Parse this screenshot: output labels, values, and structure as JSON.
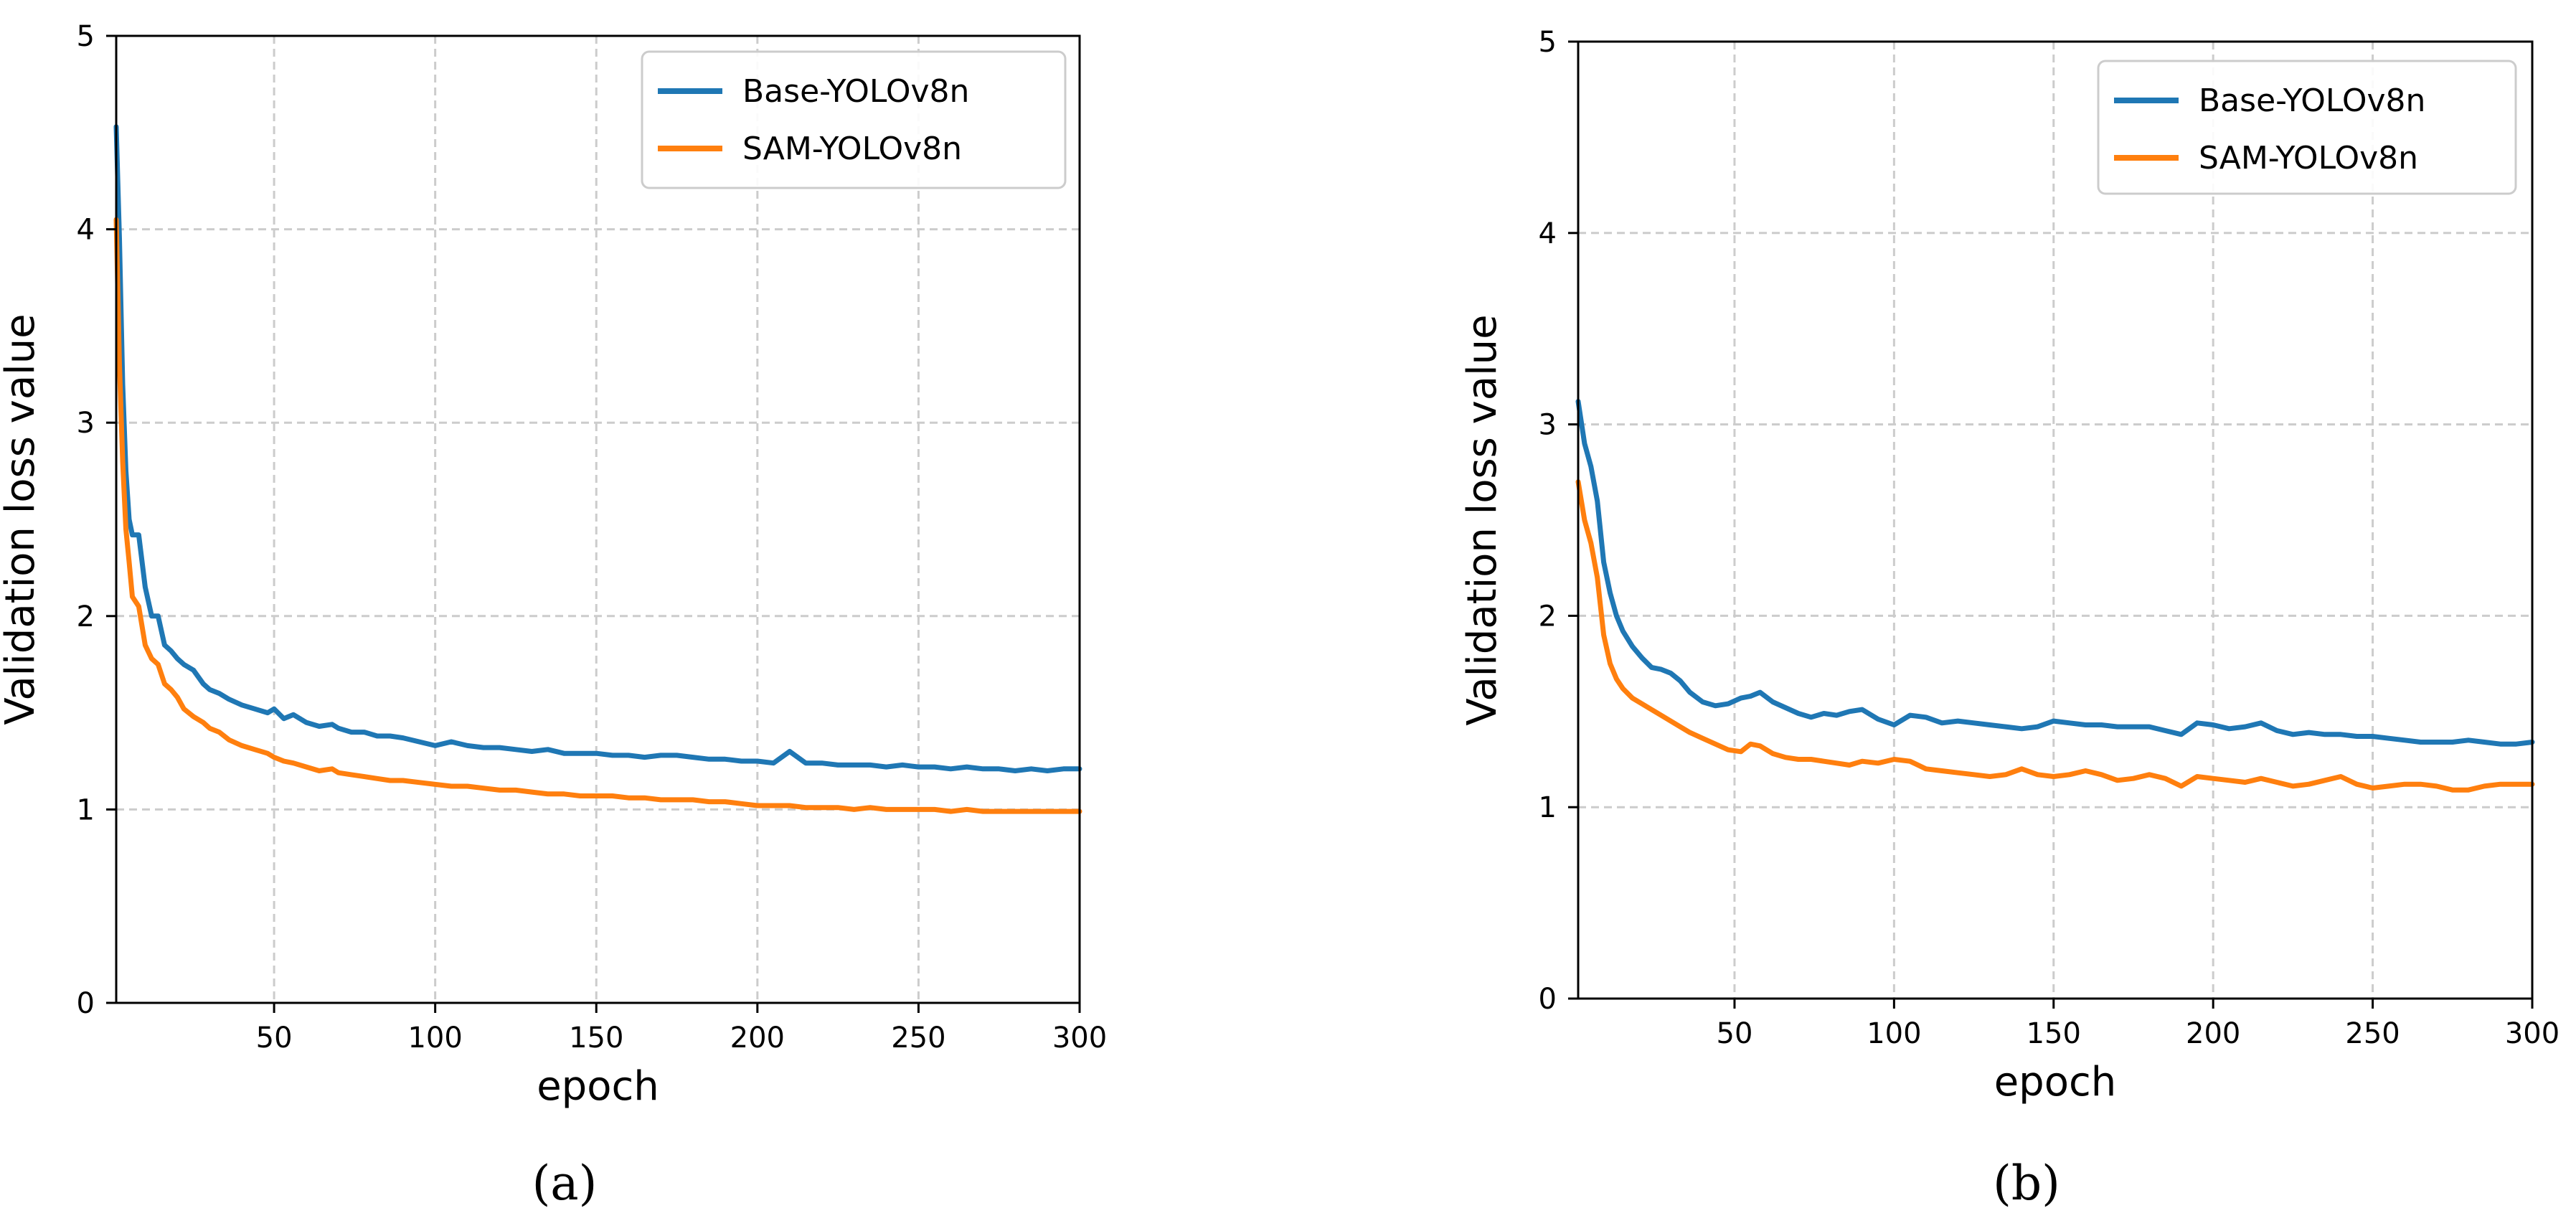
{
  "figure": {
    "captions": [
      "(a)",
      "(b)"
    ]
  },
  "chart_data": [
    {
      "type": "line",
      "xlabel": "epoch",
      "ylabel": "Validation loss value",
      "xlim": [
        1,
        300
      ],
      "ylim": [
        0,
        5
      ],
      "xticks": [
        50,
        100,
        150,
        200,
        250,
        300
      ],
      "yticks": [
        0,
        1,
        2,
        3,
        4,
        5
      ],
      "grid": true,
      "legend_position": "top-right",
      "series": [
        {
          "name": "Base-YOLOv8n",
          "color": "#1f77b4",
          "x": [
            1,
            2,
            3,
            4,
            5,
            6,
            8,
            10,
            12,
            14,
            16,
            18,
            20,
            22,
            25,
            28,
            30,
            33,
            36,
            40,
            44,
            48,
            50,
            53,
            56,
            60,
            64,
            68,
            70,
            74,
            78,
            82,
            86,
            90,
            95,
            100,
            105,
            110,
            115,
            120,
            125,
            130,
            135,
            140,
            145,
            150,
            155,
            160,
            165,
            170,
            175,
            180,
            185,
            190,
            195,
            200,
            205,
            210,
            215,
            220,
            225,
            230,
            235,
            240,
            245,
            250,
            255,
            260,
            265,
            270,
            275,
            280,
            285,
            290,
            295,
            300
          ],
          "values": [
            4.53,
            3.95,
            3.2,
            2.75,
            2.5,
            2.42,
            2.42,
            2.15,
            2.0,
            2.0,
            1.85,
            1.82,
            1.78,
            1.75,
            1.72,
            1.65,
            1.62,
            1.6,
            1.57,
            1.54,
            1.52,
            1.5,
            1.52,
            1.47,
            1.49,
            1.45,
            1.43,
            1.44,
            1.42,
            1.4,
            1.4,
            1.38,
            1.38,
            1.37,
            1.35,
            1.33,
            1.35,
            1.33,
            1.32,
            1.32,
            1.31,
            1.3,
            1.31,
            1.29,
            1.29,
            1.29,
            1.28,
            1.28,
            1.27,
            1.28,
            1.28,
            1.27,
            1.26,
            1.26,
            1.25,
            1.25,
            1.24,
            1.3,
            1.24,
            1.24,
            1.23,
            1.23,
            1.23,
            1.22,
            1.23,
            1.22,
            1.22,
            1.21,
            1.22,
            1.21,
            1.21,
            1.2,
            1.21,
            1.2,
            1.21,
            1.21
          ]
        },
        {
          "name": "SAM-YOLOv8n",
          "color": "#ff7f0e",
          "x": [
            1,
            2,
            3,
            4,
            5,
            6,
            8,
            10,
            12,
            14,
            16,
            18,
            20,
            22,
            25,
            28,
            30,
            33,
            36,
            40,
            44,
            48,
            50,
            53,
            56,
            60,
            64,
            68,
            70,
            74,
            78,
            82,
            86,
            90,
            95,
            100,
            105,
            110,
            115,
            120,
            125,
            130,
            135,
            140,
            145,
            150,
            155,
            160,
            165,
            170,
            175,
            180,
            185,
            190,
            195,
            200,
            205,
            210,
            215,
            220,
            225,
            230,
            235,
            240,
            245,
            250,
            255,
            260,
            265,
            270,
            275,
            280,
            285,
            290,
            295,
            300
          ],
          "values": [
            4.05,
            3.3,
            2.8,
            2.45,
            2.28,
            2.1,
            2.05,
            1.85,
            1.78,
            1.75,
            1.65,
            1.62,
            1.58,
            1.52,
            1.48,
            1.45,
            1.42,
            1.4,
            1.36,
            1.33,
            1.31,
            1.29,
            1.27,
            1.25,
            1.24,
            1.22,
            1.2,
            1.21,
            1.19,
            1.18,
            1.17,
            1.16,
            1.15,
            1.15,
            1.14,
            1.13,
            1.12,
            1.12,
            1.11,
            1.1,
            1.1,
            1.09,
            1.08,
            1.08,
            1.07,
            1.07,
            1.07,
            1.06,
            1.06,
            1.05,
            1.05,
            1.05,
            1.04,
            1.04,
            1.03,
            1.02,
            1.02,
            1.02,
            1.01,
            1.01,
            1.01,
            1.0,
            1.01,
            1.0,
            1.0,
            1.0,
            1.0,
            0.99,
            1.0,
            0.99,
            0.99,
            0.99,
            0.99,
            0.99,
            0.99,
            0.99
          ]
        }
      ]
    },
    {
      "type": "line",
      "xlabel": "epoch",
      "ylabel": "Validation loss value",
      "xlim": [
        1,
        300
      ],
      "ylim": [
        0,
        5
      ],
      "xticks": [
        50,
        100,
        150,
        200,
        250,
        300
      ],
      "yticks": [
        0,
        1,
        2,
        3,
        4,
        5
      ],
      "grid": true,
      "legend_position": "top-right",
      "series": [
        {
          "name": "Base-YOLOv8n",
          "color": "#1f77b4",
          "x": [
            1,
            3,
            5,
            7,
            9,
            11,
            13,
            15,
            18,
            21,
            24,
            27,
            30,
            33,
            36,
            40,
            44,
            48,
            52,
            55,
            58,
            62,
            66,
            70,
            74,
            78,
            82,
            86,
            90,
            95,
            100,
            105,
            110,
            115,
            120,
            125,
            130,
            135,
            140,
            145,
            150,
            155,
            160,
            165,
            170,
            175,
            180,
            185,
            190,
            195,
            200,
            205,
            210,
            215,
            220,
            225,
            230,
            235,
            240,
            245,
            250,
            255,
            260,
            265,
            270,
            275,
            280,
            285,
            290,
            295,
            300
          ],
          "values": [
            3.12,
            2.9,
            2.78,
            2.6,
            2.28,
            2.12,
            2.0,
            1.92,
            1.84,
            1.78,
            1.73,
            1.72,
            1.7,
            1.66,
            1.6,
            1.55,
            1.53,
            1.54,
            1.57,
            1.58,
            1.6,
            1.55,
            1.52,
            1.49,
            1.47,
            1.49,
            1.48,
            1.5,
            1.51,
            1.46,
            1.43,
            1.48,
            1.47,
            1.44,
            1.45,
            1.44,
            1.43,
            1.42,
            1.41,
            1.42,
            1.45,
            1.44,
            1.43,
            1.43,
            1.42,
            1.42,
            1.42,
            1.4,
            1.38,
            1.44,
            1.43,
            1.41,
            1.42,
            1.44,
            1.4,
            1.38,
            1.39,
            1.38,
            1.38,
            1.37,
            1.37,
            1.36,
            1.35,
            1.34,
            1.34,
            1.34,
            1.35,
            1.34,
            1.33,
            1.33,
            1.34
          ]
        },
        {
          "name": "SAM-YOLOv8n",
          "color": "#ff7f0e",
          "x": [
            1,
            3,
            5,
            7,
            9,
            11,
            13,
            15,
            18,
            21,
            24,
            27,
            30,
            33,
            36,
            40,
            44,
            48,
            52,
            55,
            58,
            62,
            66,
            70,
            74,
            78,
            82,
            86,
            90,
            95,
            100,
            105,
            110,
            115,
            120,
            125,
            130,
            135,
            140,
            145,
            150,
            155,
            160,
            165,
            170,
            175,
            180,
            185,
            190,
            195,
            200,
            205,
            210,
            215,
            220,
            225,
            230,
            235,
            240,
            245,
            250,
            255,
            260,
            265,
            270,
            275,
            280,
            285,
            290,
            295,
            300
          ],
          "values": [
            2.7,
            2.5,
            2.38,
            2.2,
            1.9,
            1.75,
            1.67,
            1.62,
            1.57,
            1.54,
            1.51,
            1.48,
            1.45,
            1.42,
            1.39,
            1.36,
            1.33,
            1.3,
            1.29,
            1.33,
            1.32,
            1.28,
            1.26,
            1.25,
            1.25,
            1.24,
            1.23,
            1.22,
            1.24,
            1.23,
            1.25,
            1.24,
            1.2,
            1.19,
            1.18,
            1.17,
            1.16,
            1.17,
            1.2,
            1.17,
            1.16,
            1.17,
            1.19,
            1.17,
            1.14,
            1.15,
            1.17,
            1.15,
            1.11,
            1.16,
            1.15,
            1.14,
            1.13,
            1.15,
            1.13,
            1.11,
            1.12,
            1.14,
            1.16,
            1.12,
            1.1,
            1.11,
            1.12,
            1.12,
            1.11,
            1.09,
            1.09,
            1.11,
            1.12,
            1.12,
            1.12
          ]
        }
      ]
    }
  ]
}
